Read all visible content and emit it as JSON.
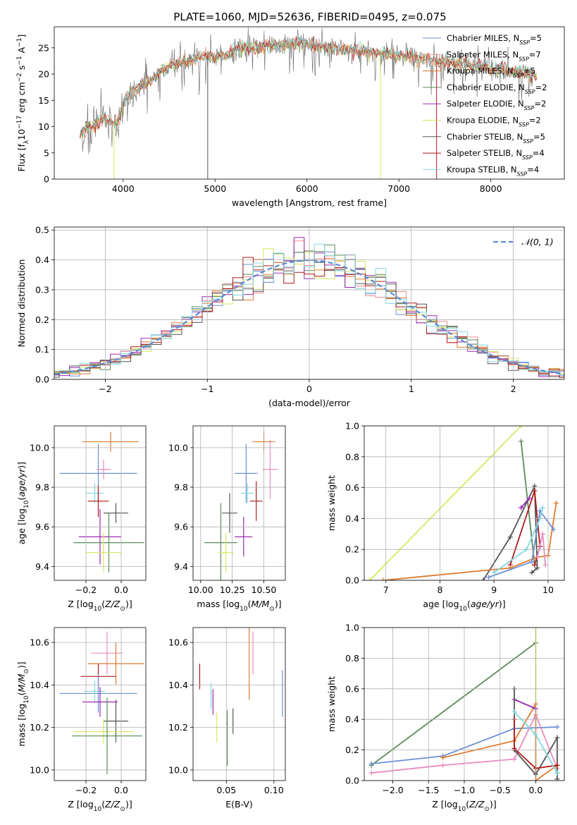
{
  "figure": {
    "title": "PLATE=1060, MJD=52636, FIBERID=0495, z=0.075"
  },
  "colors": {
    "chabrier_miles": "#6b8fd6",
    "salpeter_miles": "#f08a8a",
    "kroupa_miles": "#e07a2e",
    "chabrier_elodie": "#5a8a5a",
    "salpeter_elodie": "#9a2ab0",
    "kroupa_elodie": "#d7e860",
    "chabrier_stelib": "#555555",
    "salpeter_stelib": "#b01818",
    "kroupa_stelib": "#80d8e0",
    "pink": "#e88cc0",
    "normal_curve": "#5b8ad6",
    "grid": "#b0b0b0"
  },
  "chart_data": [
    {
      "id": "spectrum",
      "type": "line",
      "title": "PLATE=1060, MJD=52636, FIBERID=0495, z=0.075",
      "xlabel": "wavelength [Angstrom, rest frame]",
      "ylabel": "Flux [fλ10⁻¹⁷ erg cm⁻² s⁻¹ A⁻¹]",
      "xlim": [
        3250,
        8800
      ],
      "ylim": [
        0,
        29
      ],
      "xticks": [
        4000,
        5000,
        6000,
        7000,
        8000
      ],
      "yticks": [
        0,
        5,
        10,
        15,
        20,
        25
      ],
      "grid": false,
      "legend_position": "right",
      "legend": [
        {
          "label": "Chabrier MILES, N",
          "sub": "SSP",
          "suffix": "=5",
          "color": "chabrier_miles"
        },
        {
          "label": "Salpeter MILES, N",
          "sub": "SSP",
          "suffix": "=7",
          "color": "salpeter_miles"
        },
        {
          "label": "Kroupa MILES, N",
          "sub": "SSP",
          "suffix": "=5",
          "color": "kroupa_miles"
        },
        {
          "label": "Chabrier ELODIE, N",
          "sub": "SSP",
          "suffix": "=2",
          "color": "chabrier_elodie"
        },
        {
          "label": "Salpeter ELODIE, N",
          "sub": "SSP",
          "suffix": "=2",
          "color": "salpeter_elodie"
        },
        {
          "label": "Kroupa ELODIE, N",
          "sub": "SSP",
          "suffix": "=2",
          "color": "kroupa_elodie"
        },
        {
          "label": "Chabrier STELIB, N",
          "sub": "SSP",
          "suffix": "=5",
          "color": "chabrier_stelib"
        },
        {
          "label": "Salpeter STELIB, N",
          "sub": "SSP",
          "suffix": "=4",
          "color": "salpeter_stelib"
        },
        {
          "label": "Kroupa STELIB, N",
          "sub": "SSP",
          "suffix": "=4",
          "color": "kroupa_stelib"
        }
      ],
      "continuum_x": [
        3530,
        3600,
        3700,
        3800,
        3900,
        3950,
        4000,
        4100,
        4200,
        4300,
        4400,
        4500,
        4600,
        4700,
        4800,
        4900,
        5000,
        5100,
        5200,
        5300,
        5400,
        5500,
        5600,
        5700,
        5800,
        5900,
        6000,
        6100,
        6200,
        6300,
        6400,
        6500,
        6600,
        6700,
        6800,
        6900,
        7000,
        7100,
        7200,
        7300,
        7400,
        7500,
        7600,
        7700,
        7800,
        7900,
        8000,
        8100,
        8200,
        8300,
        8400,
        8500
      ],
      "continuum_y": [
        8.5,
        9.5,
        10.5,
        12,
        10.5,
        11,
        14.5,
        17,
        17.5,
        18.5,
        20.5,
        21.5,
        22,
        22.5,
        23,
        23.5,
        23,
        23.5,
        24.5,
        25,
        25,
        25,
        25.5,
        25.5,
        25.5,
        26,
        25.5,
        25.5,
        25,
        25,
        24.5,
        24.5,
        24.5,
        24,
        24,
        24,
        23.5,
        23.5,
        23,
        23,
        22.5,
        22.5,
        22,
        22,
        21.5,
        21.5,
        21,
        21,
        20.5,
        20.5,
        20,
        19.5
      ],
      "absorption_lines": [
        {
          "x": 3900,
          "y": 0
        },
        {
          "x": 4920,
          "y": 0
        },
        {
          "x": 6800,
          "y": 0
        },
        {
          "x": 7410,
          "y": 0
        }
      ]
    },
    {
      "id": "residual_hist",
      "type": "bar",
      "xlabel": "(data-model)/error",
      "ylabel": "Normed distribution",
      "xlim": [
        -2.5,
        2.5
      ],
      "ylim": [
        0,
        0.51
      ],
      "xticks": [
        -2,
        -1,
        0,
        1,
        2
      ],
      "yticks": [
        0.0,
        0.1,
        0.2,
        0.3,
        0.4,
        0.5
      ],
      "grid": true,
      "legend_position": "top-right",
      "legend_label": "N(0, 1)",
      "normal": {
        "mean": 0,
        "sigma": 1
      },
      "bin_width": 0.1
    },
    {
      "id": "age_vs_Z",
      "type": "scatter",
      "xlabel": "Z [log10(Z/Z⊙)]",
      "ylabel": "age [log10(age/yr)]",
      "xlim": [
        -0.38,
        0.14
      ],
      "ylim": [
        9.33,
        10.11
      ],
      "xticks": [
        -0.2,
        0.0
      ],
      "yticks": [
        9.4,
        9.6,
        9.8,
        10.0
      ],
      "grid": true,
      "points": [
        {
          "color": "kroupa_miles",
          "x": -0.06,
          "y": 10.03,
          "ex": 0.16,
          "ey": 0.05
        },
        {
          "color": "chabrier_miles",
          "x": -0.13,
          "y": 9.87,
          "ex": 0.22,
          "ey": 0.15
        },
        {
          "color": "pink",
          "x": -0.1,
          "y": 9.89,
          "ex": 0.04,
          "ey": 0.05
        },
        {
          "color": "kroupa_stelib",
          "x": -0.15,
          "y": 9.77,
          "ex": 0.05,
          "ey": 0.05
        },
        {
          "color": "salpeter_stelib",
          "x": -0.13,
          "y": 9.73,
          "ex": 0.06,
          "ey": 0.08
        },
        {
          "color": "chabrier_stelib",
          "x": -0.03,
          "y": 9.67,
          "ex": 0.07,
          "ey": 0.05
        },
        {
          "color": "salpeter_elodie",
          "x": -0.12,
          "y": 9.55,
          "ex": 0.12,
          "ey": 0.14
        },
        {
          "color": "chabrier_elodie",
          "x": -0.07,
          "y": 9.52,
          "ex": 0.2,
          "ey": 0.15
        },
        {
          "color": "kroupa_elodie",
          "x": -0.1,
          "y": 9.47,
          "ex": 0.1,
          "ey": 0.1
        }
      ]
    },
    {
      "id": "age_vs_mass",
      "type": "scatter",
      "xlabel": "mass [log10(M/M⊙)]",
      "ylabel": "",
      "xlim": [
        9.94,
        10.67
      ],
      "ylim": [
        9.33,
        10.11
      ],
      "xticks": [
        10.0,
        10.25,
        10.5
      ],
      "yticks": [
        9.4,
        9.6,
        9.8,
        10.0
      ],
      "grid": true,
      "points": [
        {
          "color": "kroupa_miles",
          "x": 10.5,
          "y": 10.03,
          "ex": 0.09,
          "ey": 0.05
        },
        {
          "color": "chabrier_miles",
          "x": 10.36,
          "y": 9.87,
          "ex": 0.09,
          "ey": 0.15
        },
        {
          "color": "pink",
          "x": 10.55,
          "y": 9.89,
          "ex": 0.06,
          "ey": 0.15
        },
        {
          "color": "kroupa_stelib",
          "x": 10.37,
          "y": 9.77,
          "ex": 0.05,
          "ey": 0.05
        },
        {
          "color": "salpeter_stelib",
          "x": 10.44,
          "y": 9.73,
          "ex": 0.05,
          "ey": 0.1
        },
        {
          "color": "chabrier_stelib",
          "x": 10.23,
          "y": 9.67,
          "ex": 0.06,
          "ey": 0.1
        },
        {
          "color": "salpeter_elodie",
          "x": 10.34,
          "y": 9.55,
          "ex": 0.07,
          "ey": 0.1
        },
        {
          "color": "chabrier_elodie",
          "x": 10.16,
          "y": 9.52,
          "ex": 0.13,
          "ey": 0.2
        },
        {
          "color": "kroupa_elodie",
          "x": 10.2,
          "y": 9.47,
          "ex": 0.06,
          "ey": 0.1
        }
      ]
    },
    {
      "id": "weight_vs_age",
      "type": "line",
      "xlabel": "age [log10(age/yr)]",
      "ylabel": "mass weight",
      "xlim": [
        6.6,
        10.3
      ],
      "ylim": [
        0,
        1
      ],
      "xticks": [
        7,
        8,
        9,
        10
      ],
      "yticks": [
        0.0,
        0.2,
        0.4,
        0.6,
        0.8,
        1.0
      ],
      "grid": true,
      "series": [
        {
          "color": "kroupa_elodie",
          "x": [
            6.7,
            9.5
          ],
          "y": [
            0.0,
            1.0
          ]
        },
        {
          "color": "chabrier_elodie",
          "x": [
            9.5,
            9.75
          ],
          "y": [
            0.9,
            0.1
          ]
        },
        {
          "color": "chabrier_stelib",
          "x": [
            8.8,
            9.3,
            9.75,
            9.8,
            9.7
          ],
          "y": [
            0.0,
            0.28,
            0.61,
            0.08,
            0.05
          ]
        },
        {
          "color": "salpeter_elodie",
          "x": [
            9.5,
            9.65
          ],
          "y": [
            0.47,
            0.53
          ]
        },
        {
          "color": "salpeter_stelib",
          "x": [
            9.3,
            9.75,
            9.85,
            9.75
          ],
          "y": [
            0.1,
            0.58,
            0.22,
            0.1
          ]
        },
        {
          "color": "kroupa_miles",
          "x": [
            6.95,
            9.3,
            9.8,
            10.0,
            10.15
          ],
          "y": [
            0.0,
            0.08,
            0.15,
            0.16,
            0.5
          ]
        },
        {
          "color": "chabrier_miles",
          "x": [
            8.9,
            9.7,
            9.85,
            10.1
          ],
          "y": [
            0.02,
            0.12,
            0.45,
            0.33
          ]
        },
        {
          "color": "kroupa_stelib",
          "x": [
            9.0,
            9.6,
            9.85,
            9.9
          ],
          "y": [
            0.05,
            0.2,
            0.4,
            0.47
          ]
        },
        {
          "color": "pink",
          "x": [
            9.8,
            9.9,
            9.95
          ],
          "y": [
            0.15,
            0.3,
            0.1
          ]
        }
      ]
    },
    {
      "id": "mass_vs_Z",
      "type": "scatter",
      "xlabel": "Z [log10(Z/Z⊙)]",
      "ylabel": "mass [log10(M/M⊙)]",
      "xlim": [
        -0.38,
        0.14
      ],
      "ylim": [
        9.95,
        10.67
      ],
      "xticks": [
        -0.2,
        0.0
      ],
      "yticks": [
        10.0,
        10.2,
        10.4,
        10.6
      ],
      "grid": true,
      "points": [
        {
          "color": "pink",
          "x": -0.08,
          "y": 10.55,
          "ex": 0.09,
          "ey": 0.1
        },
        {
          "color": "kroupa_miles",
          "x": -0.03,
          "y": 10.5,
          "ex": 0.16,
          "ey": 0.1
        },
        {
          "color": "salpeter_stelib",
          "x": -0.13,
          "y": 10.44,
          "ex": 0.1,
          "ey": 0.06
        },
        {
          "color": "chabrier_miles",
          "x": -0.13,
          "y": 10.36,
          "ex": 0.22,
          "ey": 0.09
        },
        {
          "color": "kroupa_stelib",
          "x": -0.15,
          "y": 10.37,
          "ex": 0.06,
          "ey": 0.05
        },
        {
          "color": "salpeter_elodie",
          "x": -0.12,
          "y": 10.32,
          "ex": 0.1,
          "ey": 0.07
        },
        {
          "color": "chabrier_stelib",
          "x": -0.03,
          "y": 10.23,
          "ex": 0.07,
          "ey": 0.1
        },
        {
          "color": "kroupa_elodie",
          "x": -0.1,
          "y": 10.18,
          "ex": 0.17,
          "ey": 0.06
        },
        {
          "color": "chabrier_elodie",
          "x": -0.08,
          "y": 10.16,
          "ex": 0.2,
          "ey": 0.18
        }
      ]
    },
    {
      "id": "mass_vs_ebv",
      "type": "scatter",
      "xlabel": "E(B-V)",
      "ylabel": "",
      "xlim": [
        0.015,
        0.112
      ],
      "ylim": [
        9.95,
        10.67
      ],
      "xticks": [
        0.05,
        0.1
      ],
      "yticks": [
        10.0,
        10.2,
        10.4,
        10.6
      ],
      "grid": true,
      "points": [
        {
          "color": "pink",
          "x": 0.078,
          "y": 10.55,
          "ex": 0,
          "ey": 0.1
        },
        {
          "color": "kroupa_miles",
          "x": 0.074,
          "y": 10.5,
          "ex": 0,
          "ey": 0.17
        },
        {
          "color": "salpeter_stelib",
          "x": 0.022,
          "y": 10.44,
          "ex": 0,
          "ey": 0.06
        },
        {
          "color": "chabrier_miles",
          "x": 0.109,
          "y": 10.36,
          "ex": 0,
          "ey": 0.11
        },
        {
          "color": "kroupa_stelib",
          "x": 0.034,
          "y": 10.35,
          "ex": 0,
          "ey": 0.06
        },
        {
          "color": "salpeter_elodie",
          "x": 0.036,
          "y": 10.32,
          "ex": 0,
          "ey": 0.06
        },
        {
          "color": "chabrier_stelib",
          "x": 0.057,
          "y": 10.23,
          "ex": 0,
          "ey": 0.06
        },
        {
          "color": "kroupa_elodie",
          "x": 0.04,
          "y": 10.2,
          "ex": 0,
          "ey": 0.07
        },
        {
          "color": "chabrier_elodie",
          "x": 0.051,
          "y": 10.15,
          "ex": 0,
          "ey": 0.13
        }
      ]
    },
    {
      "id": "weight_vs_Z",
      "type": "line",
      "xlabel": "Z [log10(Z/Z⊙)]",
      "ylabel": "mass weight",
      "xlim": [
        -2.4,
        0.4
      ],
      "ylim": [
        0,
        1
      ],
      "xticks": [
        -2.0,
        -1.5,
        -1.0,
        -0.5,
        0.0
      ],
      "yticks": [
        0.0,
        0.2,
        0.4,
        0.6,
        0.8,
        1.0
      ],
      "grid": true,
      "series": [
        {
          "color": "chabrier_elodie",
          "x": [
            -2.3,
            0.0
          ],
          "y": [
            0.1,
            0.9
          ]
        },
        {
          "color": "kroupa_elodie",
          "x": [
            0.0,
            0.0
          ],
          "y": [
            0.0,
            1.0
          ]
        },
        {
          "color": "chabrier_miles",
          "x": [
            -2.3,
            -1.3,
            -0.3,
            0.3
          ],
          "y": [
            0.11,
            0.16,
            0.34,
            0.35
          ]
        },
        {
          "color": "pink",
          "x": [
            -2.3,
            -1.3,
            -0.3,
            0.0,
            0.3
          ],
          "y": [
            0.05,
            0.1,
            0.14,
            0.43,
            0.08
          ]
        },
        {
          "color": "kroupa_miles",
          "x": [
            -1.3,
            -0.3,
            0.0,
            0.0,
            0.3
          ],
          "y": [
            0.15,
            0.26,
            0.5,
            0.0,
            0.1
          ]
        },
        {
          "color": "salpeter_elodie",
          "x": [
            -0.3,
            0.0
          ],
          "y": [
            0.53,
            0.47
          ]
        },
        {
          "color": "chabrier_stelib",
          "x": [
            -0.3,
            -0.3,
            0.0,
            0.3,
            0.3,
            0.3
          ],
          "y": [
            0.6,
            0.2,
            0.04,
            0.28,
            0.05,
            0.01
          ]
        },
        {
          "color": "salpeter_stelib",
          "x": [
            -0.3,
            -0.3,
            0.0,
            0.3
          ],
          "y": [
            0.4,
            0.21,
            0.08,
            0.1
          ]
        },
        {
          "color": "kroupa_stelib",
          "x": [
            -0.3,
            0.0,
            0.3
          ],
          "y": [
            0.45,
            0.3,
            0.05
          ]
        }
      ]
    }
  ]
}
